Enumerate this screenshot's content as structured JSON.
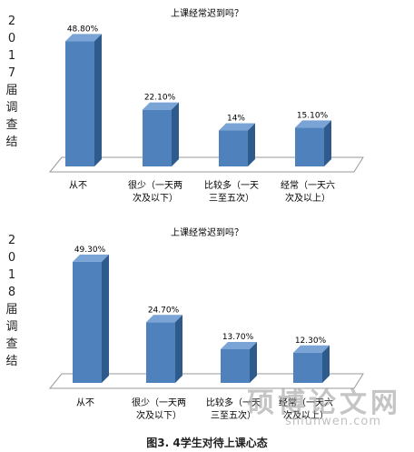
{
  "charts": [
    {
      "side_label": "2017届调查结",
      "chart_data": {
        "type": "bar",
        "title": "上课经常迟到吗？",
        "categories": [
          [
            "从不"
          ],
          [
            "很少（一天两",
            "次及以下）"
          ],
          [
            "比较多（一天",
            "三至五次）"
          ],
          [
            "经常（一天六",
            "次及以上）"
          ]
        ],
        "values": [
          48.8,
          22.1,
          14,
          15.1
        ],
        "value_labels": [
          "48.80%",
          "22.10%",
          "14%",
          "15.10%"
        ],
        "bar_color": "#4f81bd"
      }
    },
    {
      "side_label": "2018届调查结",
      "chart_data": {
        "type": "bar",
        "title": "上课经常迟到吗？",
        "categories": [
          [
            "从不"
          ],
          [
            "很少（一天两",
            "次及以下）"
          ],
          [
            "比较多（一天",
            "三至五次）"
          ],
          [
            "经常（一天六",
            "次及以上）"
          ]
        ],
        "values": [
          49.3,
          24.7,
          13.7,
          12.3
        ],
        "value_labels": [
          "49.30%",
          "24.70%",
          "13.70%",
          "12.30%"
        ],
        "bar_color": "#4f81bd"
      }
    }
  ],
  "caption": "图3. 4学生对待上课心态",
  "watermark": {
    "text": "硕博论文网",
    "url": "shlunwen.com"
  }
}
